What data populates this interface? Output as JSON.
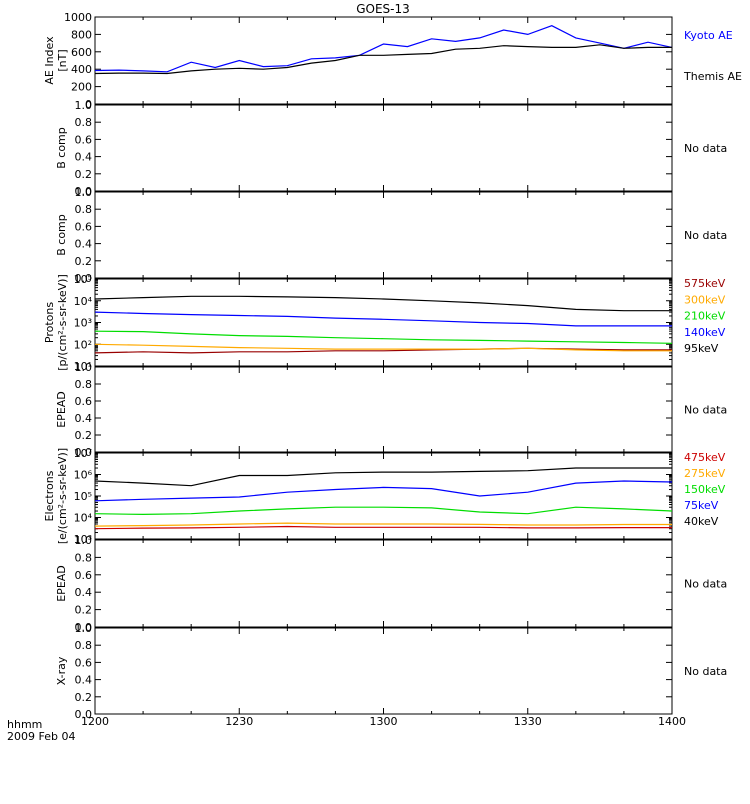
{
  "title": "GOES-13",
  "footer": {
    "time_label": "hhmm",
    "date_label": "2009 Feb 04"
  },
  "x_ticks": [
    "1200",
    "1230",
    "1300",
    "1330",
    "1400"
  ],
  "colors": {
    "black": "#000000",
    "blue": "#0000ff",
    "green": "#00dd00",
    "orange": "#ffaa00",
    "red": "#cc0000",
    "darkred": "#990000"
  },
  "chart_data": [
    {
      "type": "line",
      "ylabel": "AE Index",
      "ylabel2": "[nT]",
      "ylim": [
        0,
        1000
      ],
      "y_ticks": [
        0,
        200,
        400,
        600,
        800,
        1000
      ],
      "x": [
        0,
        5,
        10,
        15,
        20,
        25,
        30,
        35,
        40,
        45,
        50,
        55,
        60,
        65,
        70,
        75,
        80,
        85,
        90,
        95,
        100,
        105,
        110,
        115,
        120
      ],
      "series": [
        {
          "name": "Kyoto AE",
          "color": "#0000ff",
          "values": [
            385,
            390,
            380,
            370,
            480,
            420,
            500,
            430,
            440,
            520,
            530,
            560,
            690,
            660,
            750,
            720,
            760,
            850,
            800,
            900,
            760,
            700,
            640,
            710,
            650
          ]
        },
        {
          "name": "Themis AE",
          "color": "#000000",
          "values": [
            350,
            355,
            355,
            350,
            380,
            400,
            410,
            400,
            420,
            470,
            500,
            560,
            560,
            570,
            580,
            630,
            640,
            670,
            660,
            650,
            650,
            680,
            640,
            650,
            650
          ]
        }
      ]
    },
    {
      "type": "line",
      "ylabel": "B comp",
      "ylim": [
        0,
        1
      ],
      "y_ticks": [
        "0.0",
        "0.2",
        "0.4",
        "0.6",
        "0.8",
        "1.0"
      ],
      "note": "No data",
      "series": []
    },
    {
      "type": "line",
      "ylabel": "B comp",
      "ylim": [
        0,
        1
      ],
      "y_ticks": [
        "0.0",
        "0.2",
        "0.4",
        "0.6",
        "0.8",
        "1.0"
      ],
      "note": "No data",
      "series": []
    },
    {
      "type": "line",
      "log_scale": true,
      "ylabel": "Protons",
      "ylabel2": "[p/(cm²-s-sr-keV)]",
      "ylim": [
        10,
        100000
      ],
      "y_ticks": [
        "10¹",
        "10²",
        "10³",
        "10⁴",
        "10⁵"
      ],
      "x": [
        0,
        10,
        20,
        30,
        40,
        50,
        60,
        70,
        80,
        90,
        100,
        110,
        120
      ],
      "series": [
        {
          "name": "575keV",
          "color": "#990000",
          "values": [
            40,
            45,
            40,
            45,
            45,
            50,
            50,
            55,
            60,
            65,
            60,
            55,
            55
          ]
        },
        {
          "name": "300keV",
          "color": "#ffaa00",
          "values": [
            100,
            90,
            80,
            70,
            65,
            60,
            60,
            60,
            60,
            65,
            55,
            50,
            50
          ]
        },
        {
          "name": "210keV",
          "color": "#00dd00",
          "values": [
            400,
            380,
            300,
            250,
            230,
            200,
            180,
            160,
            150,
            140,
            130,
            120,
            110
          ]
        },
        {
          "name": "140keV",
          "color": "#0000ff",
          "values": [
            3000,
            2600,
            2300,
            2100,
            1900,
            1600,
            1400,
            1200,
            1000,
            900,
            700,
            700,
            700
          ]
        },
        {
          "name": "95keV",
          "color": "#000000",
          "values": [
            12000,
            14000,
            16000,
            16000,
            15000,
            14000,
            12000,
            10000,
            8000,
            6000,
            4000,
            3500,
            3500
          ]
        }
      ]
    },
    {
      "type": "line",
      "ylabel": "EPEAD",
      "ylim": [
        0,
        1
      ],
      "y_ticks": [
        "0.0",
        "0.2",
        "0.4",
        "0.6",
        "0.8",
        "1.0"
      ],
      "note": "No data",
      "series": []
    },
    {
      "type": "line",
      "log_scale": true,
      "ylabel": "Electrons",
      "ylabel2": "[e/(cm²-s-sr-keV)]",
      "ylim": [
        1000,
        10000000
      ],
      "y_ticks": [
        "10³",
        "10⁴",
        "10⁵",
        "10⁶",
        "10⁷"
      ],
      "x": [
        0,
        10,
        20,
        30,
        40,
        50,
        60,
        70,
        80,
        90,
        100,
        110,
        120
      ],
      "series": [
        {
          "name": "475keV",
          "color": "#cc0000",
          "values": [
            3000,
            3200,
            3300,
            3500,
            3800,
            3500,
            3500,
            3500,
            3500,
            3300,
            3300,
            3400,
            3400
          ]
        },
        {
          "name": "275keV",
          "color": "#ffaa00",
          "values": [
            4000,
            4200,
            4500,
            5000,
            5500,
            5000,
            5000,
            5000,
            4800,
            4500,
            4500,
            4700,
            4700
          ]
        },
        {
          "name": "150keV",
          "color": "#00dd00",
          "values": [
            15000,
            14000,
            15000,
            20000,
            25000,
            30000,
            30000,
            28000,
            18000,
            15000,
            30000,
            25000,
            20000
          ]
        },
        {
          "name": "75keV",
          "color": "#0000ff",
          "values": [
            60000,
            70000,
            80000,
            90000,
            150000,
            200000,
            250000,
            220000,
            100000,
            150000,
            400000,
            500000,
            450000
          ]
        },
        {
          "name": "40keV",
          "color": "#000000",
          "values": [
            500000,
            400000,
            300000,
            900000,
            900000,
            1200000,
            1300000,
            1300000,
            1400000,
            1500000,
            2000000,
            2000000,
            2000000
          ]
        }
      ]
    },
    {
      "type": "line",
      "ylabel": "EPEAD",
      "ylim": [
        0,
        1
      ],
      "y_ticks": [
        "0.0",
        "0.2",
        "0.4",
        "0.6",
        "0.8",
        "1.0"
      ],
      "note": "No data",
      "series": []
    },
    {
      "type": "line",
      "ylabel": "X-ray",
      "ylim": [
        0,
        1
      ],
      "y_ticks": [
        "0.0",
        "0.2",
        "0.4",
        "0.6",
        "0.8",
        "1.0"
      ],
      "note": "No data",
      "series": []
    }
  ]
}
